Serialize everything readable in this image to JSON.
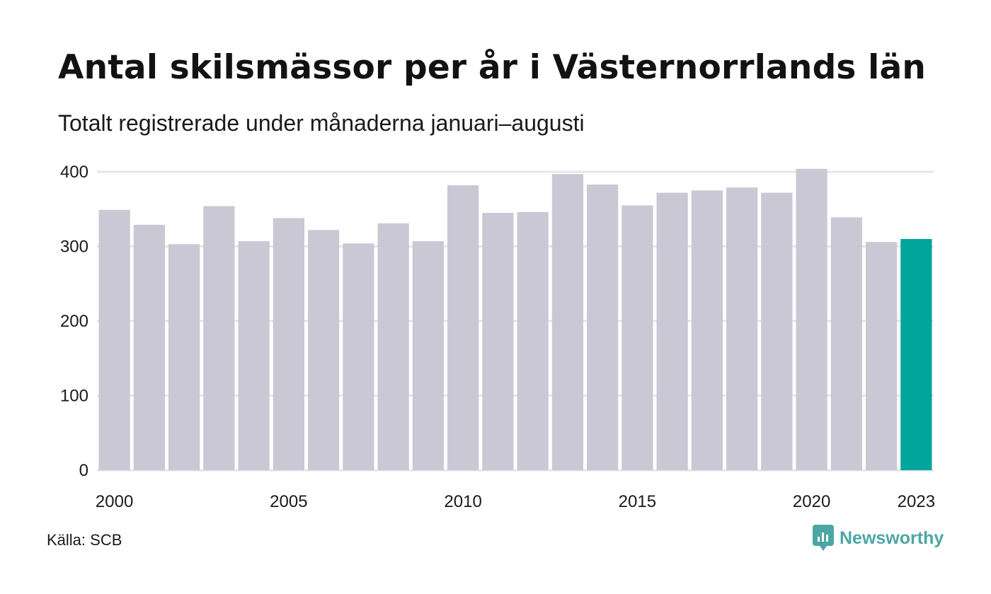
{
  "title": "Antal skilsmässor per år i Västernorrlands län",
  "subtitle": "Totalt registrerade under månaderna januari–augusti",
  "source": "Källa: SCB",
  "brand": {
    "name": "Newsworthy",
    "icon": "newsworthy-logo-icon",
    "color": "#4ba7a3"
  },
  "colors": {
    "bar": "#c9c8d4",
    "highlight": "#00a59b",
    "grid": "#e6e6ea"
  },
  "chart_data": {
    "type": "bar",
    "title": "Antal skilsmässor per år i Västernorrlands län",
    "subtitle": "Totalt registrerade under månaderna januari–augusti",
    "categories": [
      "2000",
      "2001",
      "2002",
      "2003",
      "2004",
      "2005",
      "2006",
      "2007",
      "2008",
      "2009",
      "2010",
      "2011",
      "2012",
      "2013",
      "2014",
      "2015",
      "2016",
      "2017",
      "2018",
      "2019",
      "2020",
      "2021",
      "2022",
      "2023"
    ],
    "values": [
      349,
      329,
      303,
      354,
      307,
      338,
      322,
      304,
      331,
      307,
      382,
      345,
      346,
      397,
      383,
      355,
      372,
      375,
      379,
      372,
      404,
      339,
      306,
      310
    ],
    "highlight": "2023",
    "x_tick_labels": [
      "2000",
      "2005",
      "2010",
      "2015",
      "2020",
      "2023"
    ],
    "y_ticks": [
      0,
      100,
      200,
      300,
      400
    ],
    "ylim": [
      0,
      400
    ],
    "grid": true,
    "legend": "none",
    "xlabel": "",
    "ylabel": ""
  }
}
